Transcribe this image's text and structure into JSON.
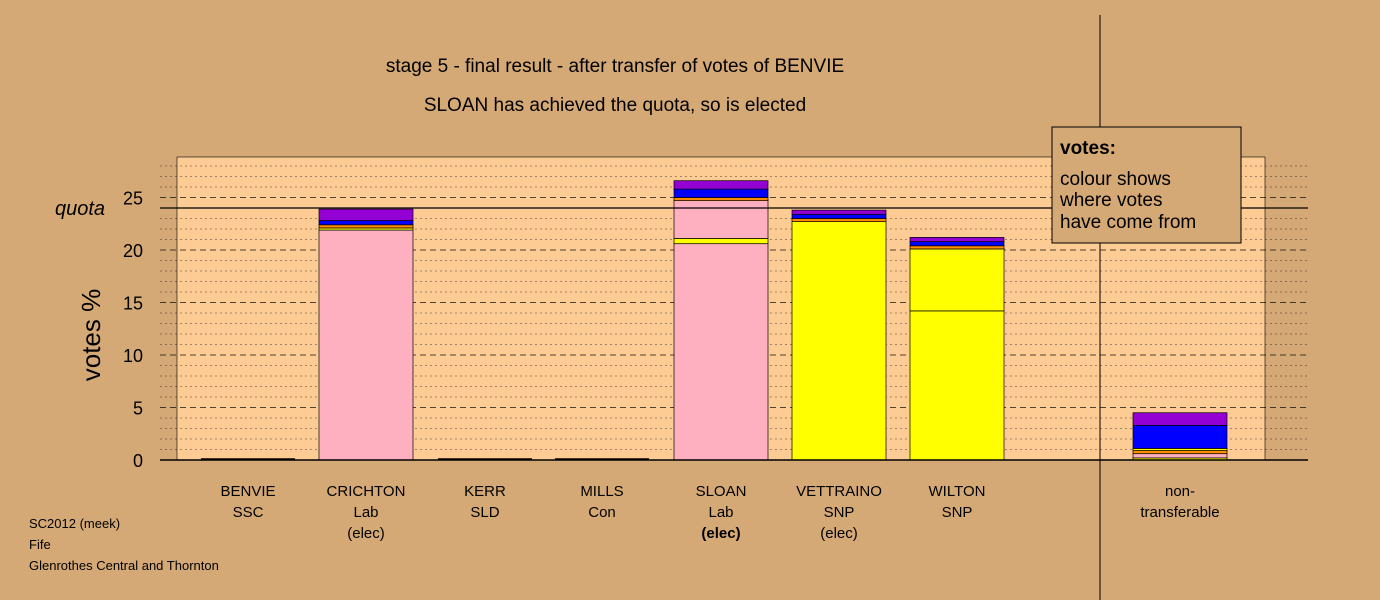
{
  "colors": {
    "background": "#d5a976",
    "plot_fill": "#fccc94",
    "Lab": "#ffb0c0",
    "SNP": "#ffff00",
    "SSC": "#ff8c00",
    "SLD": "#ff9900",
    "Con": "#0000ff",
    "non_transferable_top": "#9400d3"
  },
  "title": {
    "line1": "stage 5 - final result - after transfer of votes of BENVIE",
    "line2": "SLOAN has achieved the quota, so is elected"
  },
  "legend": {
    "title": "votes:",
    "lines": [
      "colour shows",
      "where votes",
      "have come from"
    ]
  },
  "footer": [
    "SC2012 (meek)",
    "Fife",
    "Glenrothes Central and Thornton"
  ],
  "chart_data": {
    "type": "bar",
    "stacked": true,
    "ylabel": "votes %",
    "ylim": [
      0,
      28
    ],
    "yticks": [
      0,
      5,
      10,
      15,
      20,
      25
    ],
    "quota": 24.0,
    "quota_label": "quota",
    "grid": "dashed horizontal",
    "categories": [
      {
        "name": "BENVIE",
        "party": "SSC",
        "status": ""
      },
      {
        "name": "CRICHTON",
        "party": "Lab",
        "status": "(elec)"
      },
      {
        "name": "KERR",
        "party": "SLD",
        "status": ""
      },
      {
        "name": "MILLS",
        "party": "Con",
        "status": ""
      },
      {
        "name": "SLOAN",
        "party": "Lab",
        "status": "(elec)",
        "bold_status": true
      },
      {
        "name": "VETTRAINO",
        "party": "SNP",
        "status": "(elec)"
      },
      {
        "name": "WILTON",
        "party": "SNP",
        "status": ""
      },
      {
        "name": "non-",
        "party": "transferable",
        "status": ""
      }
    ],
    "stacks": [
      [],
      [
        {
          "value": 21.9,
          "color": "#ffb0c0"
        },
        {
          "value": 0.2,
          "color": "#ffff00"
        },
        {
          "value": 0.3,
          "color": "#ff8c00"
        },
        {
          "value": 0.4,
          "color": "#0000ff"
        },
        {
          "value": 1.1,
          "color": "#9400d3"
        }
      ],
      [],
      [],
      [
        {
          "value": 20.6,
          "color": "#ffb0c0"
        },
        {
          "value": 0.5,
          "color": "#ffff00"
        },
        {
          "value": 3.6,
          "color": "#ffb0c0"
        },
        {
          "value": 0.3,
          "color": "#ff8c00"
        },
        {
          "value": 0.8,
          "color": "#0000ff"
        },
        {
          "value": 0.8,
          "color": "#9400d3"
        }
      ],
      [
        {
          "value": 22.7,
          "color": "#ffff00"
        },
        {
          "value": 0.3,
          "color": "#ff8c00"
        },
        {
          "value": 0.4,
          "color": "#0000ff"
        },
        {
          "value": 0.4,
          "color": "#9400d3"
        }
      ],
      [
        {
          "value": 14.2,
          "color": "#ffff00"
        },
        {
          "value": 5.9,
          "color": "#ffff00"
        },
        {
          "value": 0.3,
          "color": "#ff8c00"
        },
        {
          "value": 0.4,
          "color": "#0000ff"
        },
        {
          "value": 0.4,
          "color": "#9400d3"
        }
      ],
      [
        {
          "value": 0.2,
          "color": "#ffff00"
        },
        {
          "value": 0.4,
          "color": "#ffb0c0"
        },
        {
          "value": 0.3,
          "color": "#ff8c00"
        },
        {
          "value": 0.2,
          "color": "#ffff00"
        },
        {
          "value": 2.2,
          "color": "#0000ff"
        },
        {
          "value": 1.2,
          "color": "#9400d3"
        }
      ]
    ]
  }
}
